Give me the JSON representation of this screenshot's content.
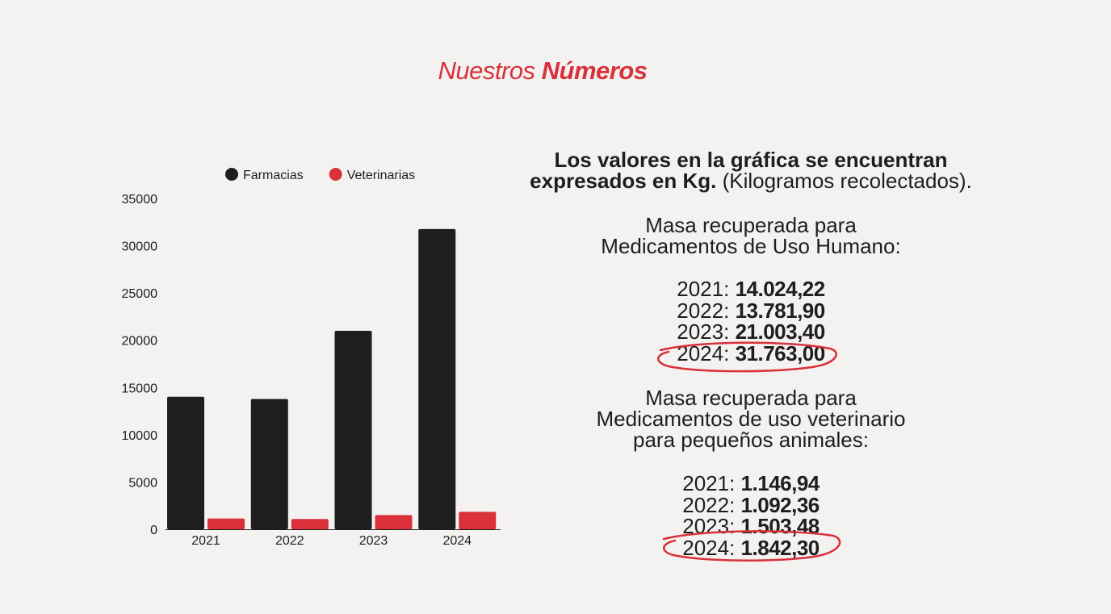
{
  "title": {
    "light": "Nuestros",
    "bold": "Números"
  },
  "intro": {
    "line1": "Los valores en la gráfica se encuentran",
    "line2_bold": "expresados en Kg.",
    "line2_rest": " (Kilogramos recolectados)."
  },
  "section_humano": {
    "heading": [
      "Masa recuperada para",
      "Medicamentos de Uso Humano:"
    ],
    "rows": [
      {
        "year": "2021:",
        "value": "14.024,22"
      },
      {
        "year": "2022:",
        "value": "13.781,90"
      },
      {
        "year": "2023:",
        "value": "21.003,40"
      },
      {
        "year": "2024:",
        "value": "31.763,00"
      }
    ]
  },
  "section_veterinario": {
    "heading": [
      "Masa recuperada para",
      "Medicamentos de uso veterinario",
      "para pequeños animales:"
    ],
    "rows": [
      {
        "year": "2021:",
        "value": "1.146,94"
      },
      {
        "year": "2022:",
        "value": "1.092,36"
      },
      {
        "year": "2023:",
        "value": "1.503,48"
      },
      {
        "year": "2024:",
        "value": "1.842,30"
      }
    ]
  },
  "colors": {
    "accent": "#d9303a",
    "dark": "#1e1e1e",
    "background": "#f4f2f1"
  },
  "chart_data": {
    "type": "bar",
    "categories": [
      "2021",
      "2022",
      "2023",
      "2024"
    ],
    "series": [
      {
        "name": "Farmacias",
        "color": "#1e1e1e",
        "values": [
          14024.22,
          13781.9,
          21003.4,
          31763.0
        ]
      },
      {
        "name": "Veterinarias",
        "color": "#d9303a",
        "values": [
          1146.94,
          1092.36,
          1503.48,
          1842.3
        ]
      }
    ],
    "yticks": [
      "0",
      "5000",
      "10000",
      "15000",
      "20000",
      "25000",
      "30000",
      "35000"
    ],
    "ylim": [
      0,
      35000
    ],
    "grid": false,
    "legend": "top"
  }
}
